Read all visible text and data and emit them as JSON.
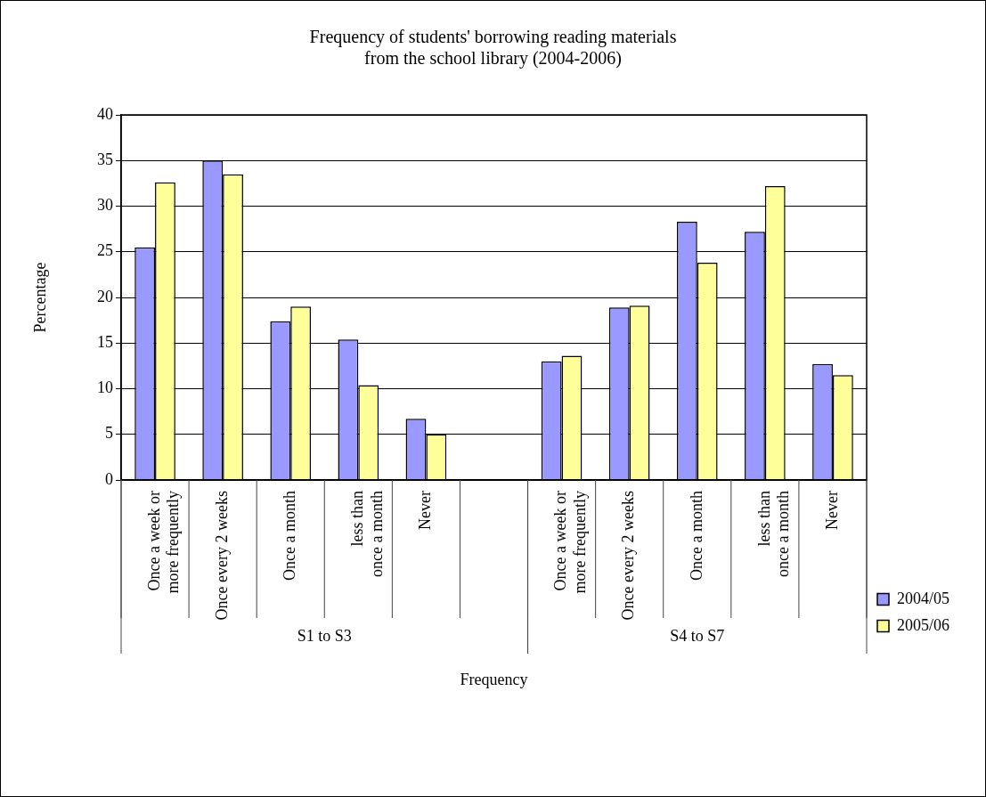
{
  "chart_data": {
    "type": "bar",
    "title": "Frequency of students' borrowing reading materials\nfrom the school library (2004-2006)",
    "xlabel": "Frequency",
    "ylabel": "Percentage",
    "categories": [
      "Once a week or\nmore frequently",
      "Once every 2 weeks",
      "Once a month",
      "less than\nonce a month",
      "Never",
      null,
      "Once a week or\nmore frequently",
      "Once every 2 weeks",
      "Once a month",
      "less than\nonce a month",
      "Never"
    ],
    "series": [
      {
        "name": "2004/05",
        "color": "#9999ff",
        "values": [
          25.5,
          35,
          17.4,
          15.4,
          6.7,
          null,
          13,
          18.9,
          28.3,
          27.2,
          12.7
        ]
      },
      {
        "name": "2005/06",
        "color": "#ffff99",
        "values": [
          32.6,
          33.5,
          19,
          10.4,
          5,
          null,
          13.6,
          19.1,
          23.8,
          32.2,
          11.5
        ]
      }
    ],
    "ylim": [
      0,
      40
    ],
    "yticks": [
      0,
      5,
      10,
      15,
      20,
      25,
      30,
      35,
      40
    ],
    "grid": "y",
    "legend": "right",
    "annotations": [
      "S1 to S3",
      "S4 to S7"
    ]
  }
}
